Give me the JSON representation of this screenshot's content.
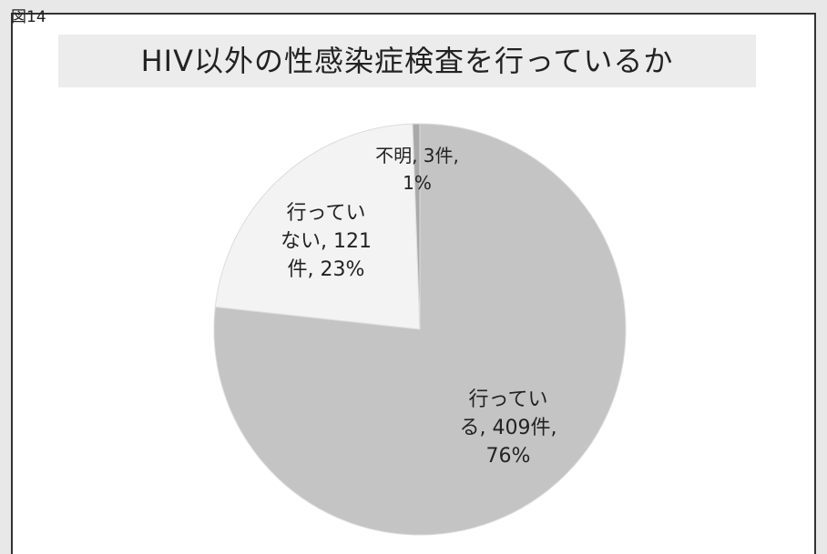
{
  "figure_label": "図14",
  "chart_data": {
    "type": "pie",
    "title": "HIV以外の性感染症検査を行っているか",
    "slices": [
      {
        "label": "行ってい\nる, 409件,\n76%",
        "category": "行っている",
        "count": 409,
        "percent": 76,
        "color": "#c4c4c4"
      },
      {
        "label": "行ってい\nない, 121\n件, 23%",
        "category": "行っていない",
        "count": 121,
        "percent": 23,
        "color": "#f3f3f3"
      },
      {
        "label": "不明, 3件,\n1%",
        "category": "不明",
        "count": 3,
        "percent": 1,
        "color": "#a9a9a9"
      }
    ],
    "start": "top",
    "direction": "clockwise",
    "legend": "none"
  }
}
